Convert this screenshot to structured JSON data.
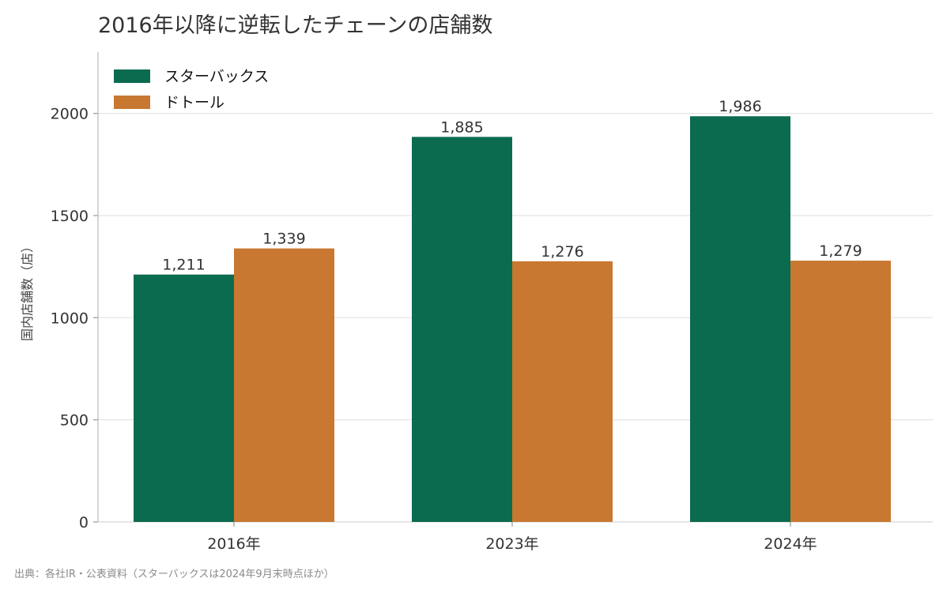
{
  "chart_data": {
    "type": "bar",
    "title": "2016年以降に逆転したチェーンの店舗数",
    "ylabel": "国内店舗数（店）",
    "xlabel": "",
    "categories": [
      "2016年",
      "2023年",
      "2024年"
    ],
    "series": [
      {
        "name": "スターバックス",
        "values": [
          1211,
          1885,
          1986
        ],
        "labels": [
          "1,211",
          "1,885",
          "1,986"
        ],
        "color": "#0b6b4f"
      },
      {
        "name": "ドトール",
        "values": [
          1339,
          1276,
          1279
        ],
        "labels": [
          "1,339",
          "1,276",
          "1,279"
        ],
        "color": "#c87830"
      }
    ],
    "ylim": [
      0,
      2300
    ],
    "yticks": [
      0,
      500,
      1000,
      1500,
      2000
    ],
    "grid": true,
    "legend": "top-left",
    "source": "出典：各社IR・公表資料（スターバックスは2024年9月末時点ほか）"
  }
}
